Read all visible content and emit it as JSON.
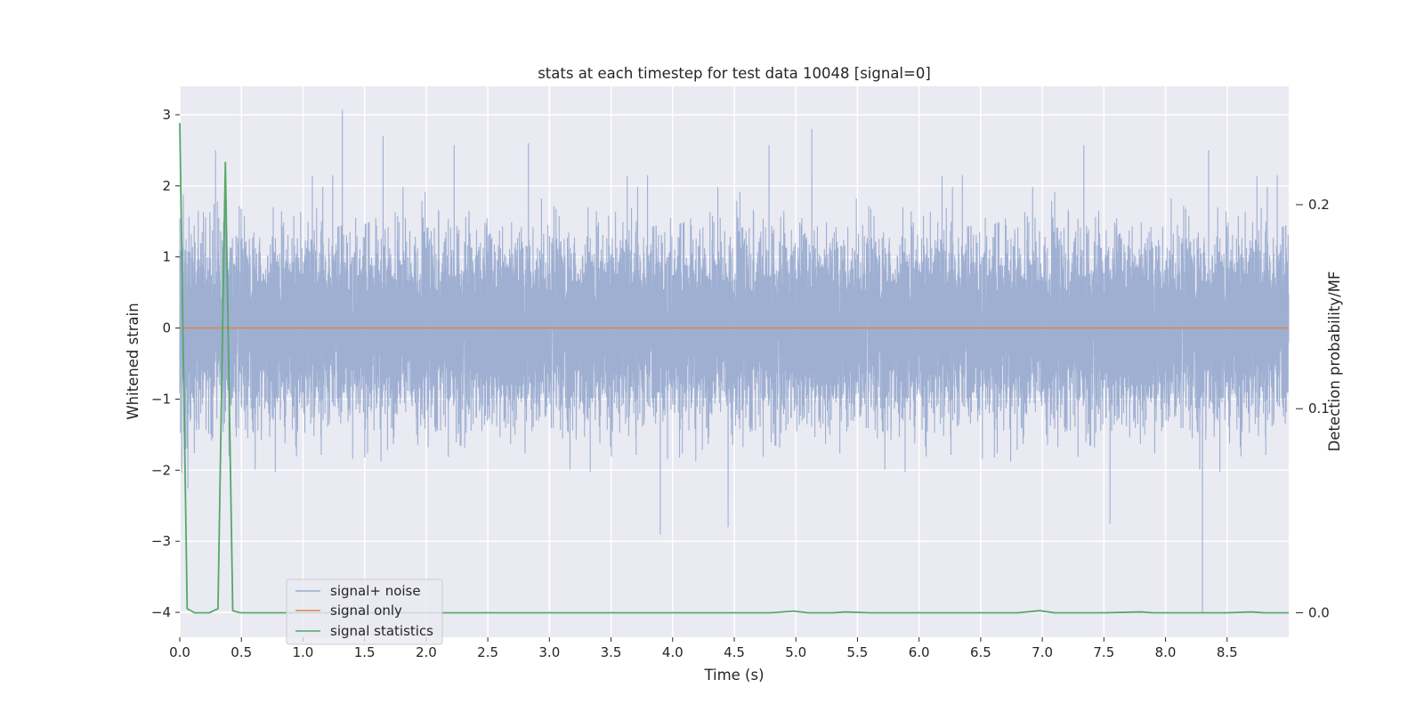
{
  "chart_data": {
    "type": "line",
    "title": "stats at each timestep for test data 10048 [signal=0]",
    "xlabel": "Time (s)",
    "ylabel": "Whitened strain",
    "ylabel_right": "Detection probability/MF",
    "xlim": [
      0,
      9.0
    ],
    "ylim": [
      -4.35,
      3.4
    ],
    "ylim_right": [
      -0.012,
      0.258
    ],
    "x_ticks": [
      0.0,
      0.5,
      1.0,
      1.5,
      2.0,
      2.5,
      3.0,
      3.5,
      4.0,
      4.5,
      5.0,
      5.5,
      6.0,
      6.5,
      7.0,
      7.5,
      8.0,
      8.5
    ],
    "x_tick_labels": [
      "0.0",
      "0.5",
      "1.0",
      "1.5",
      "2.0",
      "2.5",
      "3.0",
      "3.5",
      "4.0",
      "4.5",
      "5.0",
      "5.5",
      "6.0",
      "6.5",
      "7.0",
      "7.5",
      "8.0",
      "8.5"
    ],
    "y_ticks": [
      -4,
      -3,
      -2,
      -1,
      0,
      1,
      2,
      3
    ],
    "y_tick_labels": [
      "−4",
      "−3",
      "−2",
      "−1",
      "0",
      "1",
      "2",
      "3"
    ],
    "y_right_ticks": [
      0.0,
      0.1,
      0.2
    ],
    "y_right_tick_labels": [
      "0.0",
      "0.1",
      "0.2"
    ],
    "grid": true,
    "legend_position": "lower-left",
    "series": [
      {
        "name": "signal+ noise",
        "axis": "left",
        "color": "#9aacd0",
        "style": "dense noise, roughly Gaussian with std about 0.6 across 0 to 9 s",
        "sample_rate_hz": 2048,
        "noise_std": 0.6,
        "notable_points": [
          {
            "x": 0.29,
            "y": 2.5
          },
          {
            "x": 0.37,
            "y": 2.3
          },
          {
            "x": 1.32,
            "y": 3.07
          },
          {
            "x": 1.65,
            "y": 2.7
          },
          {
            "x": 2.83,
            "y": 2.6
          },
          {
            "x": 3.9,
            "y": -2.9
          },
          {
            "x": 4.45,
            "y": -2.8
          },
          {
            "x": 5.13,
            "y": 2.8
          },
          {
            "x": 7.55,
            "y": -2.75
          },
          {
            "x": 8.3,
            "y": -4.0
          },
          {
            "x": 8.35,
            "y": 2.5
          }
        ]
      },
      {
        "name": "signal only",
        "axis": "left",
        "color": "#dd8452",
        "x": [
          0.0,
          9.0
        ],
        "y": [
          0.0,
          0.0
        ]
      },
      {
        "name": "signal statistics",
        "axis": "right",
        "color": "#55a868",
        "x": [
          0.0,
          0.06,
          0.12,
          0.24,
          0.31,
          0.37,
          0.43,
          0.49,
          0.55,
          0.62,
          1.0,
          2.0,
          3.0,
          4.0,
          4.8,
          4.98,
          5.1,
          5.3,
          5.4,
          5.6,
          6.0,
          6.8,
          6.98,
          7.1,
          7.5,
          7.8,
          7.9,
          8.0,
          8.5,
          8.7,
          8.8,
          9.0
        ],
        "y": [
          0.24,
          0.002,
          0.0,
          0.0,
          0.002,
          0.221,
          0.001,
          0.0,
          0.0,
          0.0,
          0.0,
          0.0,
          0.0,
          0.0,
          0.0,
          0.0008,
          0.0,
          0.0,
          0.0004,
          0.0,
          0.0,
          0.0,
          0.001,
          0.0,
          0.0,
          0.0004,
          0.0,
          0.0,
          0.0,
          0.0004,
          0.0,
          0.0
        ]
      }
    ]
  }
}
